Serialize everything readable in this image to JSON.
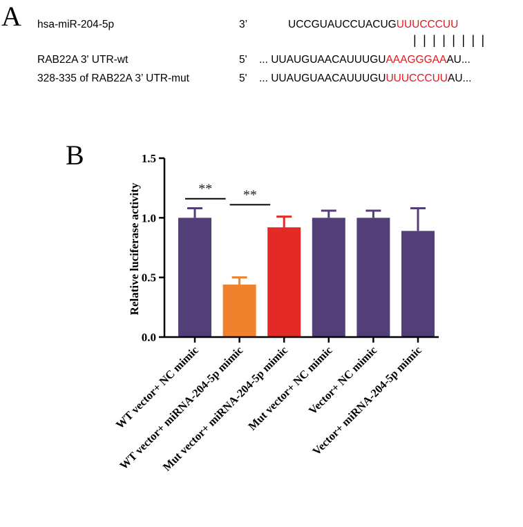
{
  "panel_a": {
    "letter": "A",
    "rows": [
      {
        "label": "hsa-miR-204-5p",
        "end": "3’",
        "prefix": "",
        "seq_black": "UCCGUAUCCUACUG",
        "seq_red": "UUUCCCUU",
        "suffix": ""
      },
      {
        "label": "RAB22A 3' UTR-wt",
        "end": "5'",
        "prefix": "...",
        "seq_black": "UUAUGUAACAUUUGU",
        "seq_red": "AAAGGGAA",
        "suffix": "AU..."
      },
      {
        "label": "328-335 of RAB22A 3’ UTR-mut",
        "end": "5'",
        "prefix": "...",
        "seq_black": "UUAUGUAACAUUUGU",
        "seq_red": "UUUCCCUU",
        "suffix": "AU..."
      }
    ],
    "pairing": "| | | | | | | |",
    "red_color": "#e8141b"
  },
  "panel_b": {
    "letter": "B"
  },
  "chart_data": {
    "type": "bar",
    "ylabel": "Relative luciferase activity",
    "xlabel": "",
    "ylim": [
      0,
      1.5
    ],
    "yticks": [
      "0.0",
      "0.5",
      "1.0",
      "1.5"
    ],
    "categories": [
      "WT vector+ NC mimic",
      "WT vector+ miRNA-204-5p mimic",
      "Mut vector+ miRNA-204-5p mimic",
      "Mut vector+ NC mimic",
      "Vector+ NC mimic",
      "Vector+ miRNA-204-5p mimic"
    ],
    "values": [
      1.0,
      0.44,
      0.92,
      1.0,
      1.0,
      0.89
    ],
    "errors": [
      0.08,
      0.06,
      0.09,
      0.06,
      0.06,
      0.19
    ],
    "colors": [
      "#533f78",
      "#f0822d",
      "#e42a27",
      "#533f78",
      "#533f78",
      "#533f78"
    ],
    "significance": [
      {
        "from": 0,
        "to": 1,
        "label": "**",
        "y": 1.16
      },
      {
        "from": 1,
        "to": 2,
        "label": "**",
        "y": 1.11
      }
    ],
    "grid": false
  }
}
